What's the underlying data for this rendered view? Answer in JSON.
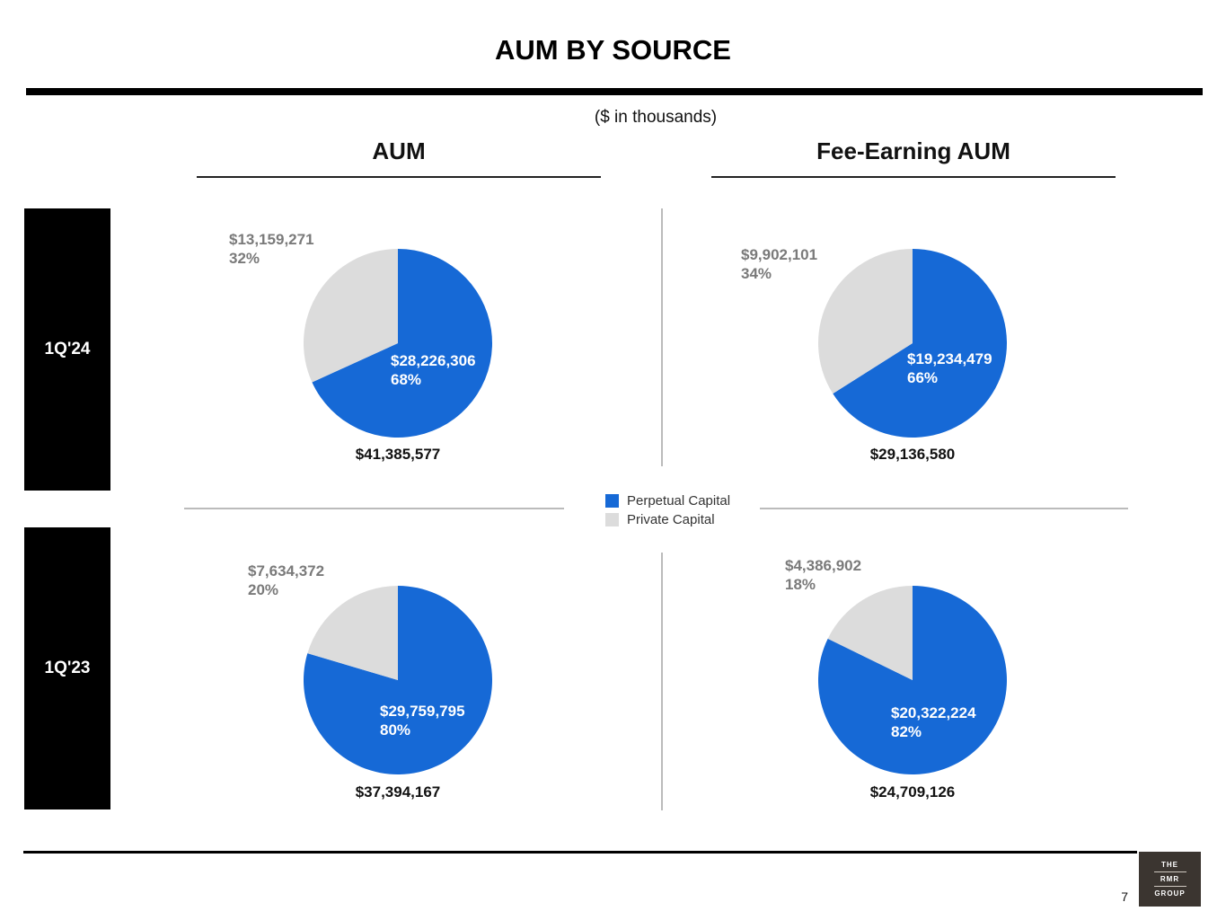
{
  "title": "AUM BY SOURCE",
  "subtitle": "($ in thousands)",
  "columns": {
    "aum": "AUM",
    "fee_earning": "Fee-Earning AUM"
  },
  "rows": {
    "current": "1Q'24",
    "prior": "1Q'23"
  },
  "legend": [
    {
      "label": "Perpetual Capital",
      "color": "#1669d6"
    },
    {
      "label": "Private Capital",
      "color": "#dcdcdc"
    }
  ],
  "page_number": "7",
  "logo": {
    "line1": "THE",
    "line2": "RMR",
    "line3": "GROUP"
  },
  "chart_data": [
    {
      "type": "pie",
      "title": "AUM 1Q'24",
      "total": "$41,385,577",
      "slices": [
        {
          "name": "Perpetual Capital",
          "value": 28226306,
          "value_label": "$28,226,306",
          "percent": "68%",
          "color": "#1669d6"
        },
        {
          "name": "Private Capital",
          "value": 13159271,
          "value_label": "$13,159,271",
          "percent": "32%",
          "color": "#dcdcdc"
        }
      ]
    },
    {
      "type": "pie",
      "title": "Fee-Earning AUM 1Q'24",
      "total": "$29,136,580",
      "slices": [
        {
          "name": "Perpetual Capital",
          "value": 19234479,
          "value_label": "$19,234,479",
          "percent": "66%",
          "color": "#1669d6"
        },
        {
          "name": "Private Capital",
          "value": 9902101,
          "value_label": "$9,902,101",
          "percent": "34%",
          "color": "#dcdcdc"
        }
      ]
    },
    {
      "type": "pie",
      "title": "AUM 1Q'23",
      "total": "$37,394,167",
      "slices": [
        {
          "name": "Perpetual Capital",
          "value": 29759795,
          "value_label": "$29,759,795",
          "percent": "80%",
          "color": "#1669d6"
        },
        {
          "name": "Private Capital",
          "value": 7634372,
          "value_label": "$7,634,372",
          "percent": "20%",
          "color": "#dcdcdc"
        }
      ]
    },
    {
      "type": "pie",
      "title": "Fee-Earning AUM 1Q'23",
      "total": "$24,709,126",
      "slices": [
        {
          "name": "Perpetual Capital",
          "value": 20322224,
          "value_label": "$20,322,224",
          "percent": "82%",
          "color": "#1669d6"
        },
        {
          "name": "Private Capital",
          "value": 4386902,
          "value_label": "$4,386,902",
          "percent": "18%",
          "color": "#dcdcdc"
        }
      ]
    }
  ]
}
